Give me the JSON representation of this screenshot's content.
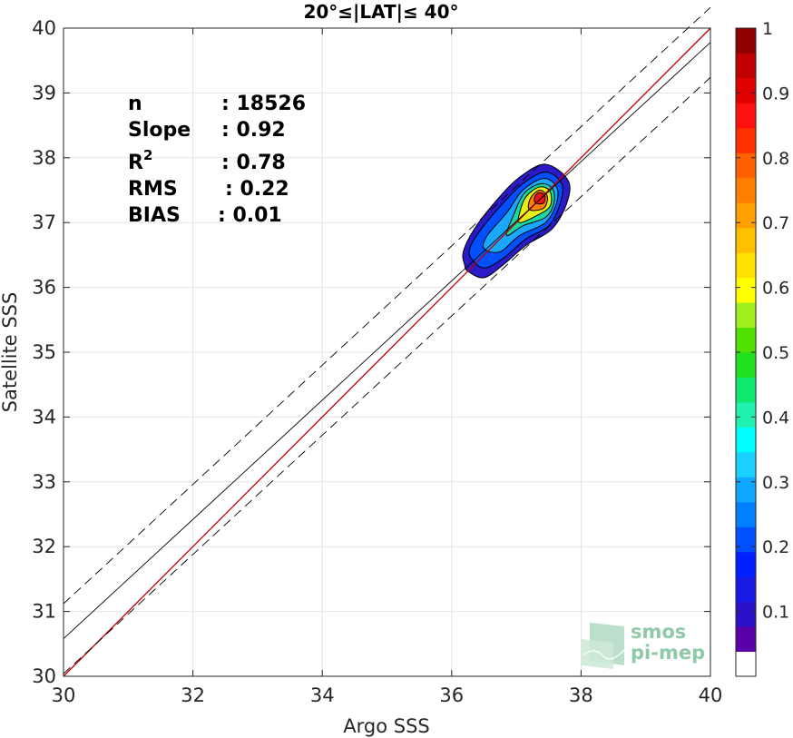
{
  "chart_data": {
    "type": "scatter",
    "subtype": "density-contour",
    "title": "20°≤|LAT|≤ 40°",
    "xlabel": "Argo SSS",
    "ylabel": "Satellite SSS",
    "xlim": [
      30,
      40
    ],
    "ylim": [
      30,
      40
    ],
    "xticks": [
      30,
      32,
      34,
      36,
      38,
      40
    ],
    "yticks": [
      30,
      31,
      32,
      33,
      34,
      35,
      36,
      37,
      38,
      39,
      40
    ],
    "grid": true,
    "stats": [
      {
        "label": "n",
        "sep": ": 18526"
      },
      {
        "label": "Slope",
        "sep": ": 0.92"
      },
      {
        "label": "R",
        "sup": "2",
        "sep": ": 0.78"
      },
      {
        "label": "RMS",
        "sep": ": 0.22"
      },
      {
        "label": "BIAS",
        "sep": ": 0.01"
      }
    ],
    "lines": [
      {
        "name": "1:1",
        "color": "#c00000",
        "points": [
          [
            30,
            30
          ],
          [
            40,
            40
          ]
        ]
      },
      {
        "name": "fit",
        "color": "#000000",
        "points": [
          [
            30,
            30.58
          ],
          [
            40,
            39.78
          ]
        ]
      },
      {
        "name": "fit+",
        "color": "#000000",
        "dashed": true,
        "points": [
          [
            30,
            31.12
          ],
          [
            40,
            40.32
          ]
        ]
      },
      {
        "name": "fit-",
        "color": "#000000",
        "dashed": true,
        "points": [
          [
            30,
            30.04
          ],
          [
            40,
            39.24
          ]
        ]
      }
    ],
    "density": {
      "center": [
        37.35,
        37.35
      ],
      "levels": [
        0.05,
        0.2,
        0.35,
        0.5,
        0.65,
        0.8,
        0.95
      ],
      "level_colors": [
        "#2a1ac8",
        "#0050ff",
        "#1aa8ff",
        "#19d8a0",
        "#e6ef1a",
        "#ff8000",
        "#e31a1c"
      ],
      "envelopes": [
        [
          [
            36.2,
            36.35
          ],
          [
            36.25,
            36.25
          ],
          [
            36.5,
            36.15
          ],
          [
            36.8,
            36.35
          ],
          [
            37.15,
            36.65
          ],
          [
            37.55,
            36.9
          ],
          [
            37.78,
            37.3
          ],
          [
            37.8,
            37.65
          ],
          [
            37.45,
            37.9
          ],
          [
            37.05,
            37.7
          ],
          [
            36.7,
            37.35
          ],
          [
            36.35,
            36.9
          ],
          [
            36.18,
            36.55
          ]
        ],
        [
          [
            36.3,
            36.45
          ],
          [
            36.5,
            36.3
          ],
          [
            36.8,
            36.45
          ],
          [
            37.15,
            36.75
          ],
          [
            37.5,
            36.95
          ],
          [
            37.68,
            37.3
          ],
          [
            37.7,
            37.6
          ],
          [
            37.45,
            37.78
          ],
          [
            37.1,
            37.6
          ],
          [
            36.75,
            37.25
          ],
          [
            36.42,
            36.85
          ],
          [
            36.28,
            36.6
          ]
        ],
        [
          [
            36.5,
            36.6
          ],
          [
            36.75,
            36.55
          ],
          [
            37.05,
            36.8
          ],
          [
            37.45,
            37.0
          ],
          [
            37.62,
            37.3
          ],
          [
            37.62,
            37.55
          ],
          [
            37.42,
            37.68
          ],
          [
            37.1,
            37.5
          ],
          [
            36.85,
            37.15
          ],
          [
            36.55,
            36.8
          ]
        ],
        [
          [
            36.85,
            36.8
          ],
          [
            37.1,
            36.95
          ],
          [
            37.45,
            37.08
          ],
          [
            37.58,
            37.3
          ],
          [
            37.56,
            37.52
          ],
          [
            37.38,
            37.6
          ],
          [
            37.12,
            37.45
          ],
          [
            36.95,
            37.1
          ]
        ],
        [
          [
            37.05,
            37.0
          ],
          [
            37.3,
            37.1
          ],
          [
            37.52,
            37.25
          ],
          [
            37.52,
            37.48
          ],
          [
            37.36,
            37.55
          ],
          [
            37.15,
            37.4
          ],
          [
            37.05,
            37.15
          ]
        ],
        [
          [
            37.2,
            37.2
          ],
          [
            37.42,
            37.22
          ],
          [
            37.48,
            37.4
          ],
          [
            37.36,
            37.5
          ],
          [
            37.22,
            37.38
          ]
        ],
        [
          [
            37.3,
            37.3
          ],
          [
            37.42,
            37.3
          ],
          [
            37.44,
            37.42
          ],
          [
            37.34,
            37.46
          ],
          [
            37.28,
            37.38
          ]
        ]
      ]
    },
    "colorbar": {
      "range": [
        0,
        1
      ],
      "ticks": [
        "0.1",
        "0.2",
        "0.3",
        "0.4",
        "0.5",
        "0.6",
        "0.7",
        "0.8",
        "0.9",
        "1"
      ],
      "colors": [
        "#ffffff",
        "#5a00a8",
        "#2b12c8",
        "#1a1ae6",
        "#0020ff",
        "#0050ff",
        "#0080ff",
        "#10a8ff",
        "#1ad0ff",
        "#00ffff",
        "#20f0b0",
        "#10e870",
        "#20e020",
        "#50e000",
        "#a0f020",
        "#ffff00",
        "#ffe000",
        "#ffc000",
        "#ffa000",
        "#ff8000",
        "#ff6000",
        "#ff3000",
        "#ff1010",
        "#e00000",
        "#c00000",
        "#900000"
      ]
    },
    "watermark": [
      "smos",
      "pi-mep"
    ]
  }
}
